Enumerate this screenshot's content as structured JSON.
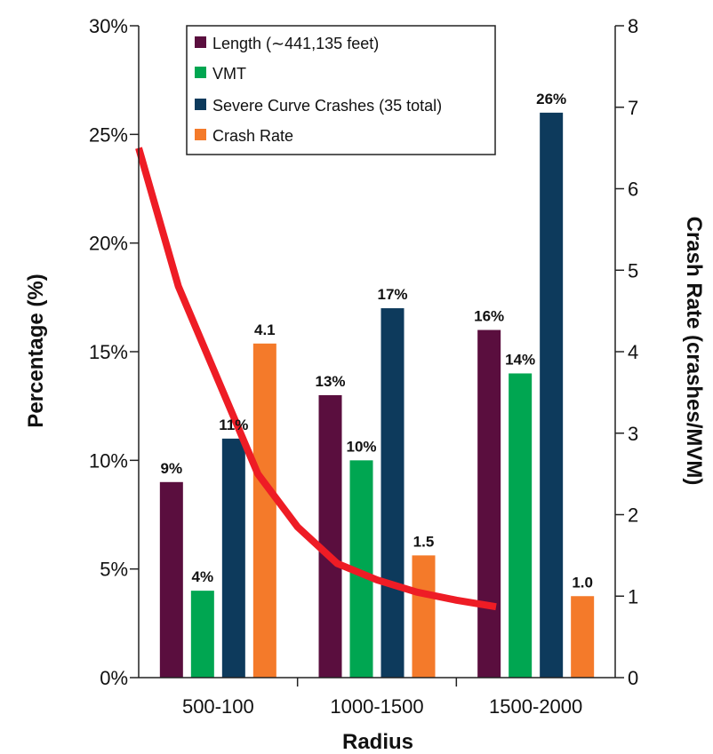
{
  "chart_data": {
    "type": "bar",
    "categories": [
      "500-100",
      "1000-1500",
      "1500-2000"
    ],
    "series": [
      {
        "name": "Length (∼441,135 feet)",
        "values": [
          9,
          13,
          16
        ],
        "labels": [
          "9%",
          "13%",
          "16%"
        ],
        "color": "#5a0e3e",
        "axis": "left"
      },
      {
        "name": "VMT",
        "values": [
          4,
          10,
          14
        ],
        "labels": [
          "4%",
          "10%",
          "14%"
        ],
        "color": "#00a651",
        "axis": "left"
      },
      {
        "name": "Severe Curve Crashes (35 total)",
        "values": [
          11,
          17,
          26
        ],
        "labels": [
          "11%",
          "17%",
          "26%"
        ],
        "color": "#0d3a5c",
        "axis": "left"
      },
      {
        "name": "Crash Rate",
        "values": [
          4.1,
          1.5,
          1.0
        ],
        "labels": [
          "4.1",
          "1.5",
          "1.0"
        ],
        "color": "#f47a2a",
        "axis": "right"
      }
    ],
    "line": {
      "color": "#ee1c25",
      "axis": "right",
      "points": [
        {
          "x": 0.0,
          "y": 6.5
        },
        {
          "x": 0.5,
          "y": 4.8
        },
        {
          "x": 1.5,
          "y": 2.5
        },
        {
          "x": 2.0,
          "y": 1.85
        },
        {
          "x": 2.5,
          "y": 1.4
        },
        {
          "x": 3.0,
          "y": 1.2
        },
        {
          "x": 3.5,
          "y": 1.05
        },
        {
          "x": 4.0,
          "y": 0.95
        },
        {
          "x": 4.5,
          "y": 0.87
        }
      ]
    },
    "xlabel": "Radius",
    "ylabel": "Percentage (%)",
    "y2label": "Crash Rate (crashes/MVM)",
    "ylim": [
      0,
      30
    ],
    "y2lim": [
      0,
      8
    ],
    "yticks": [
      "0%",
      "5%",
      "10%",
      "15%",
      "20%",
      "25%",
      "30%"
    ],
    "y2ticks": [
      "0",
      "1",
      "2",
      "3",
      "4",
      "5",
      "6",
      "7",
      "8"
    ],
    "legend_position": "top-left",
    "grid": false
  }
}
